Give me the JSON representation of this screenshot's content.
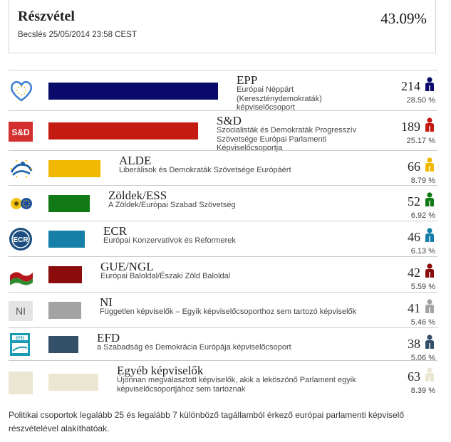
{
  "turnout": {
    "title": "Részvétel",
    "estimate": "Becslés 25/05/2014 23:58 CEST",
    "percent": "43.09%"
  },
  "chart_data": {
    "type": "bar",
    "title": "",
    "xlabel": "",
    "ylabel": "",
    "categories": [
      "EPP",
      "S&D",
      "ALDE",
      "Zöldek/ESS",
      "ECR",
      "GUE/NGL",
      "NI",
      "EFD",
      "Egyéb képviselők"
    ],
    "values": [
      214,
      189,
      66,
      52,
      46,
      42,
      41,
      38,
      63
    ],
    "percents": [
      "28.50 %",
      "25.17 %",
      "8.79 %",
      "6.92 %",
      "6.13 %",
      "5.59 %",
      "5.46 %",
      "5.06 %",
      "8.39 %"
    ],
    "xlim": [
      0,
      214
    ]
  },
  "groups": [
    {
      "name": "EPP",
      "seats": "214",
      "pct": "28.50 %",
      "color": "#0b0b6b",
      "person_color": "#0b0b6b",
      "logo": "epp-heart-logo",
      "desc": "Európai Néppárt (Kereszténydemokraták) képviselőcsoport"
    },
    {
      "name": "S&D",
      "seats": "189",
      "pct": "25.17 %",
      "color": "#c41a11",
      "person_color": "#c41a11",
      "logo": "sd-logo",
      "logo_text": "S&D",
      "desc": "Szocialisták és Demokraták Progresszív Szövetsége Európai Parlamenti Képviselőcsoportja"
    },
    {
      "name": "ALDE",
      "seats": "66",
      "pct": "8.79 %",
      "color": "#f0b800",
      "person_color": "#f0b800",
      "logo": "alde-logo",
      "desc": "Liberálisok és Demokraták Szövetsége Európáért"
    },
    {
      "name": "Zöldek/ESS",
      "seats": "52",
      "pct": "6.92 %",
      "color": "#117a16",
      "person_color": "#117a16",
      "logo": "greens-logo",
      "desc": "A Zöldek/Európai Szabad Szövetség"
    },
    {
      "name": "ECR",
      "seats": "46",
      "pct": "6.13 %",
      "color": "#157fa8",
      "person_color": "#157fa8",
      "logo": "ecr-logo",
      "logo_text": "ECR",
      "desc": "Európai Konzervatívok és Reformerek"
    },
    {
      "name": "GUE/NGL",
      "seats": "42",
      "pct": "5.59 %",
      "color": "#8b0c0c",
      "person_color": "#8b0c0c",
      "logo": "gue-ngl-logo",
      "desc": "Európai Baloldal/Északi Zöld Baloldal"
    },
    {
      "name": "NI",
      "seats": "41",
      "pct": "5.46 %",
      "color": "#a3a3a3",
      "person_color": "#a3a3a3",
      "logo": "ni-logo",
      "logo_text": "NI",
      "desc": "Független képviselők – Egyik képviselőcsoporthoz sem tartozó képviselők"
    },
    {
      "name": "EFD",
      "seats": "38",
      "pct": "5.06 %",
      "color": "#345069",
      "person_color": "#345069",
      "logo": "efd-logo",
      "logo_text": "EFD",
      "desc": "a Szabadság és Demokrácia Európája képviselőcsoport"
    },
    {
      "name": "Egyéb képviselők",
      "seats": "63",
      "pct": "8.39 %",
      "color": "#ebe6d2",
      "person_color": "#ebe6d2",
      "logo": "others-logo",
      "desc": "Újonnan megválasztott képviselők, akik a leköszönő Parlament egyik képviselőcsoportjához sem tartoznak"
    }
  ],
  "footnote": "Politikai csoportok legalább 25 és legalább 7 különböző tagállamból érkező európai parlamenti képviselő részvételével alakíthatóak."
}
